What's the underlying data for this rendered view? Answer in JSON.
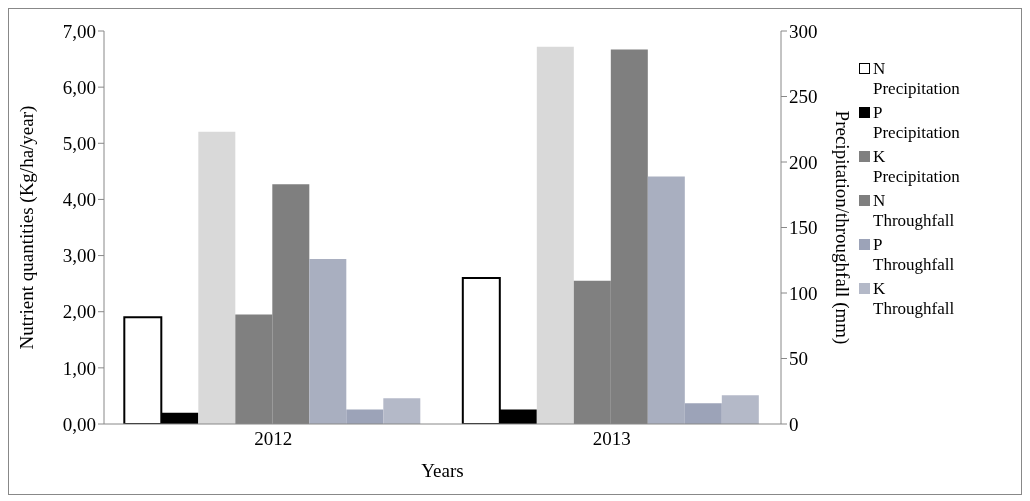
{
  "chart_data": {
    "type": "bar",
    "xlabel": "Years",
    "ylabel": "Nutrient quantities (Kg/ha/year)",
    "y2label": "Precipitation/throughfall (mm)",
    "categories": [
      "2012",
      "2013"
    ],
    "series": [
      {
        "name": "N Precipitation",
        "color": "#ffffff",
        "values": [
          1.9,
          2.6
        ]
      },
      {
        "name": "P Precipitation",
        "color": "#000000",
        "values": [
          0.2,
          0.26
        ]
      },
      {
        "color": "#d9d9d9",
        "values": [
          223,
          288
        ],
        "axis": "y2"
      },
      {
        "name": "K Precipitation",
        "color": "#808080",
        "values": [
          1.95,
          2.55
        ]
      },
      {
        "name": "N Throughfall",
        "color": "#7f7f7f",
        "values": [
          4.27,
          6.67
        ]
      },
      {
        "color": "#a9afc0",
        "values": [
          126,
          189
        ],
        "axis": "y2"
      },
      {
        "name": "P Throughfall",
        "color": "#9ca3b8",
        "values": [
          0.26,
          0.37
        ]
      },
      {
        "name": "K Throughfall",
        "color": "#b4b9c8",
        "values": [
          0.46,
          0.51
        ]
      }
    ],
    "ylim": [
      0,
      7
    ],
    "yticks": [
      {
        "value": 0,
        "label": "0,00"
      },
      {
        "value": 1,
        "label": "1,00"
      },
      {
        "value": 2,
        "label": "2,00"
      },
      {
        "value": 3,
        "label": "3,00"
      },
      {
        "value": 4,
        "label": "4,00"
      },
      {
        "value": 5,
        "label": "5,00"
      },
      {
        "value": 6,
        "label": "6,00"
      },
      {
        "value": 7,
        "label": "7,00"
      }
    ],
    "y2lim": [
      0,
      300
    ],
    "y2ticks": [
      0,
      50,
      100,
      150,
      200,
      250,
      300
    ],
    "legend": "right"
  }
}
